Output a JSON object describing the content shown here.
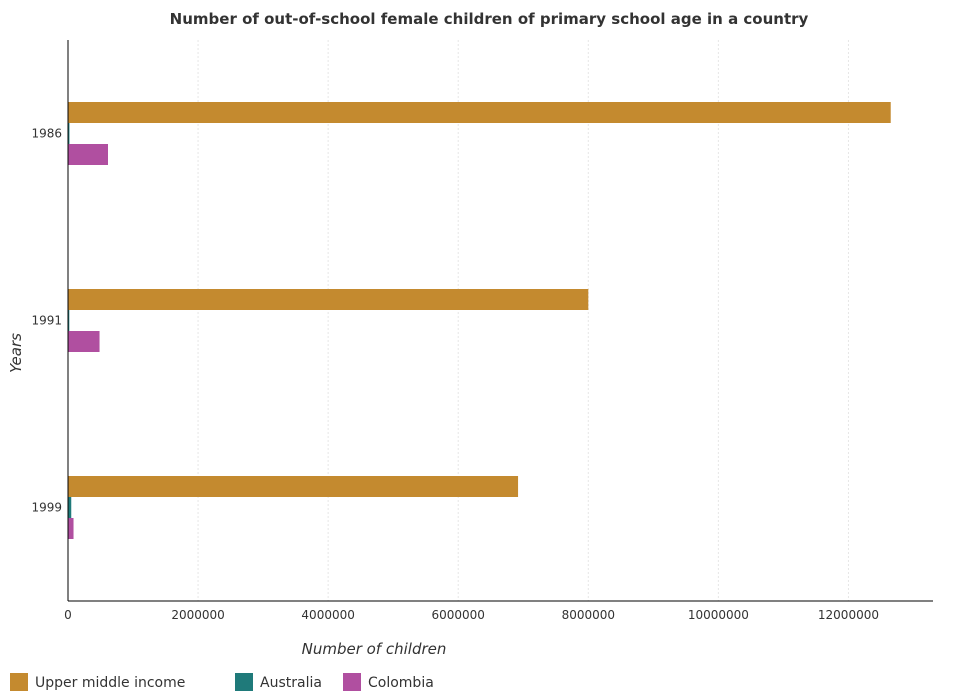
{
  "chart_data": {
    "type": "bar",
    "orientation": "horizontal",
    "title": "Number of out-of-school female children of primary school age in a country",
    "xlabel": "Number of children",
    "ylabel": "Years",
    "categories": [
      "1986",
      "1991",
      "1999"
    ],
    "x_ticks": [
      "0",
      "2000000",
      "4000000",
      "6000000",
      "8000000",
      "10000000",
      "12000000"
    ],
    "xlim": [
      0,
      13300000
    ],
    "grid": true,
    "legend_position": "bottom-left",
    "series": [
      {
        "name": "Upper middle income",
        "color": "#c48a2f",
        "values": [
          12650000,
          8000000,
          6920000
        ]
      },
      {
        "name": "Australia",
        "color": "#1f7a7a",
        "values": [
          22000,
          20000,
          50000
        ]
      },
      {
        "name": "Colombia",
        "color": "#b04fa0",
        "values": [
          615000,
          485000,
          85000
        ]
      }
    ]
  }
}
